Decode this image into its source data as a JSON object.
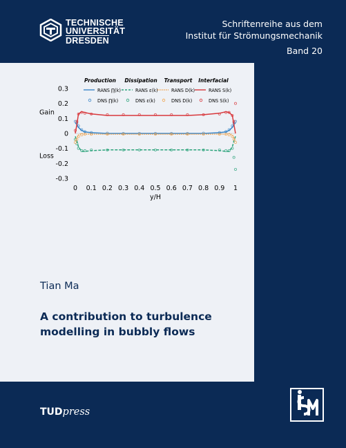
{
  "institution": {
    "logo_lines": [
      "TECHNISCHE",
      "UNIVERSITÄT",
      "DRESDEN"
    ]
  },
  "series": {
    "line1": "Schriftenreihe aus dem",
    "line2": "Institut für Strömungsmechanik",
    "band": "Band 20"
  },
  "author": "Tian Ma",
  "title": {
    "line1": "A contribution to turbulence",
    "line2": "modelling in bubbly flows"
  },
  "publisher": {
    "bold": "TUD",
    "italic": "press"
  },
  "ism_logo": "ism-logo",
  "colors": {
    "navy": "#0b2a55",
    "panel": "#eef1f6",
    "production": "#3a86c8",
    "dissipation": "#2aa37a",
    "transport": "#f0a24a",
    "interfacial": "#d8373b"
  },
  "chart_data": {
    "type": "line",
    "xlabel": "y/H",
    "ylabel": "",
    "xlim": [
      0,
      1
    ],
    "ylim": [
      -0.3,
      0.3
    ],
    "xticks": [
      "0",
      "0.1",
      "0.2",
      "0.3",
      "0.4",
      "0.5",
      "0.6",
      "0.7",
      "0.8",
      "0.9",
      "1"
    ],
    "yticks": [
      "0.3",
      "0.2",
      "0.1",
      "0",
      "-0.1",
      "-0.2",
      "-0.3"
    ],
    "side_labels": {
      "gain": "Gain",
      "loss": "Loss"
    },
    "group_headers": [
      "Production",
      "Dissipation",
      "Transport",
      "Interfacial"
    ],
    "legend_placement": "top",
    "x": [
      0,
      0.01,
      0.02,
      0.04,
      0.06,
      0.1,
      0.2,
      0.3,
      0.4,
      0.5,
      0.6,
      0.7,
      0.8,
      0.9,
      0.94,
      0.96,
      0.98,
      0.99,
      1
    ],
    "series": [
      {
        "name": "RANS ∏(k)",
        "style": "line",
        "color": "#3a86c8",
        "values": [
          0.07,
          0.06,
          0.04,
          0.02,
          0.01,
          0.005,
          0.0,
          0.0,
          0.0,
          0.0,
          0.0,
          0.0,
          0.0,
          0.005,
          0.01,
          0.02,
          0.04,
          0.06,
          0.07
        ]
      },
      {
        "name": "DNS ∏(k)",
        "style": "marker",
        "color": "#3a86c8",
        "values": [
          0.08,
          0.07,
          0.05,
          0.025,
          0.012,
          0.006,
          0.002,
          0.0,
          0.0,
          0.0,
          0.0,
          0.0,
          0.002,
          0.006,
          0.012,
          0.025,
          0.05,
          0.07,
          0.08
        ]
      },
      {
        "name": "RANS ε(k)",
        "style": "dashed",
        "color": "#2aa37a",
        "values": [
          -0.02,
          -0.05,
          -0.09,
          -0.12,
          -0.12,
          -0.115,
          -0.11,
          -0.11,
          -0.11,
          -0.11,
          -0.11,
          -0.11,
          -0.11,
          -0.115,
          -0.12,
          -0.12,
          -0.09,
          -0.05,
          -0.02
        ]
      },
      {
        "name": "DNS ε(k)",
        "style": "marker",
        "color": "#2aa37a",
        "values": [
          -0.04,
          -0.07,
          -0.1,
          -0.115,
          -0.115,
          -0.11,
          -0.11,
          -0.11,
          -0.11,
          -0.11,
          -0.11,
          -0.11,
          -0.11,
          -0.11,
          -0.115,
          -0.115,
          -0.1,
          -0.16,
          -0.24
        ]
      },
      {
        "name": "RANS D(k)",
        "style": "dotted",
        "color": "#f0a24a",
        "values": [
          -0.05,
          -0.03,
          -0.01,
          0.0,
          -0.005,
          -0.005,
          -0.005,
          -0.005,
          -0.005,
          -0.005,
          -0.005,
          -0.005,
          -0.005,
          -0.005,
          -0.005,
          0.0,
          -0.01,
          -0.03,
          -0.05
        ]
      },
      {
        "name": "DNS D(k)",
        "style": "marker",
        "color": "#f0a24a",
        "values": [
          -0.06,
          -0.04,
          -0.02,
          -0.01,
          -0.005,
          -0.005,
          -0.005,
          -0.005,
          -0.005,
          -0.005,
          -0.005,
          -0.005,
          -0.005,
          -0.005,
          -0.005,
          -0.01,
          -0.02,
          -0.04,
          -0.06
        ]
      },
      {
        "name": "RANS S(k)",
        "style": "line",
        "color": "#d8373b",
        "values": [
          0.0,
          0.06,
          0.13,
          0.145,
          0.14,
          0.13,
          0.12,
          0.12,
          0.12,
          0.12,
          0.12,
          0.12,
          0.125,
          0.135,
          0.145,
          0.14,
          0.12,
          0.06,
          0.0
        ]
      },
      {
        "name": "DNS S(k)",
        "style": "marker",
        "color": "#d8373b",
        "values": [
          0.02,
          0.08,
          0.13,
          0.14,
          0.135,
          0.13,
          0.125,
          0.125,
          0.125,
          0.125,
          0.125,
          0.125,
          0.125,
          0.13,
          0.14,
          0.14,
          0.12,
          0.08,
          0.2
        ]
      }
    ]
  }
}
